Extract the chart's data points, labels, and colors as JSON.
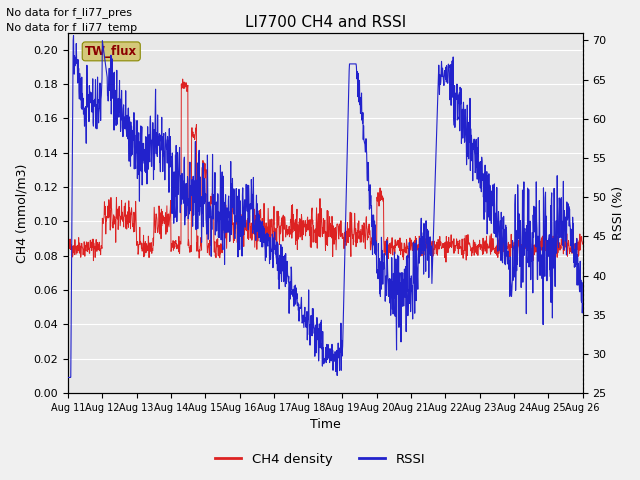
{
  "title": "LI7700 CH4 and RSSI",
  "xlabel": "Time",
  "ylabel_left": "CH4 (mmol/m3)",
  "ylabel_right": "RSSI (%)",
  "top_left_text_line1": "No data for f_li77_pres",
  "top_left_text_line2": "No data for f_li77_temp",
  "box_label": "TW_flux",
  "box_color": "#d4c87a",
  "box_text_color": "#8b0000",
  "ch4_color": "#dd2222",
  "rssi_color": "#2222cc",
  "ylim_left": [
    0.0,
    0.21
  ],
  "ylim_right": [
    25,
    71
  ],
  "yticks_left": [
    0.0,
    0.02,
    0.04,
    0.06,
    0.08,
    0.1,
    0.12,
    0.14,
    0.16,
    0.18,
    0.2
  ],
  "yticks_right": [
    25,
    30,
    35,
    40,
    45,
    50,
    55,
    60,
    65,
    70
  ],
  "xtick_labels": [
    "Aug 11",
    "Aug 12",
    "Aug 13",
    "Aug 14",
    "Aug 15",
    "Aug 16",
    "Aug 17",
    "Aug 18",
    "Aug 19",
    "Aug 20",
    "Aug 21",
    "Aug 22",
    "Aug 23",
    "Aug 24",
    "Aug 25",
    "Aug 26"
  ],
  "bg_color": "#e8e8e8",
  "grid_color": "#ffffff",
  "fig_bg_color": "#f0f0f0",
  "legend_labels": [
    "CH4 density",
    "RSSI"
  ],
  "legend_colors": [
    "#dd2222",
    "#2222cc"
  ],
  "n_points": 1500
}
